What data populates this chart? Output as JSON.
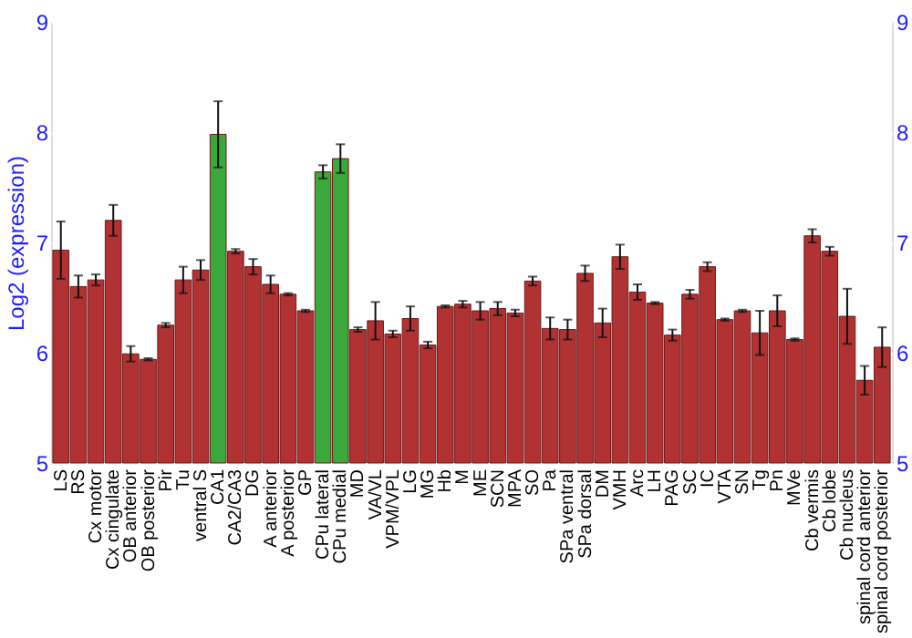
{
  "chart_data": {
    "type": "bar",
    "ylabel": "Log2 (expression)",
    "categories": [
      "LS",
      "RS",
      "Cx motor",
      "Cx cingulate",
      "OB anterior",
      "OB posterior",
      "Pir",
      "Tu",
      "ventral S",
      "CA1",
      "CA2/CA3",
      "DG",
      "A anterior",
      "A posterior",
      "GP",
      "CPu lateral",
      "CPu medial",
      "MD",
      "VA/VL",
      "VPM/VPL",
      "LG",
      "MG",
      "Hb",
      "M",
      "ME",
      "SCN",
      "MPA",
      "SO",
      "Pa",
      "SPa ventral",
      "SPa dorsal",
      "DM",
      "VMH",
      "Arc",
      "LH",
      "PAG",
      "SC",
      "IC",
      "VTA",
      "SN",
      "Tg",
      "Pn",
      "MVe",
      "Cb vermis",
      "Cb lobe",
      "Cb nucleus",
      "spinal cord anterior",
      "spinal cord posterior"
    ],
    "values": [
      6.93,
      6.6,
      6.66,
      7.2,
      5.99,
      5.94,
      6.25,
      6.66,
      6.75,
      7.98,
      6.92,
      6.78,
      6.62,
      6.53,
      6.38,
      7.64,
      7.76,
      6.21,
      6.29,
      6.17,
      6.31,
      6.07,
      6.42,
      6.44,
      6.38,
      6.4,
      6.36,
      6.65,
      6.22,
      6.21,
      6.72,
      6.27,
      6.87,
      6.55,
      6.45,
      6.16,
      6.53,
      6.78,
      6.3,
      6.38,
      6.18,
      6.38,
      6.12,
      7.06,
      6.92,
      6.33,
      5.75,
      6.05
    ],
    "errors": [
      0.26,
      0.1,
      0.05,
      0.14,
      0.07,
      0.01,
      0.02,
      0.12,
      0.09,
      0.3,
      0.02,
      0.07,
      0.08,
      0.01,
      0.01,
      0.06,
      0.13,
      0.02,
      0.17,
      0.03,
      0.11,
      0.03,
      0.01,
      0.03,
      0.08,
      0.06,
      0.03,
      0.04,
      0.1,
      0.09,
      0.07,
      0.13,
      0.11,
      0.07,
      0.01,
      0.05,
      0.04,
      0.04,
      0.01,
      0.01,
      0.2,
      0.14,
      0.01,
      0.06,
      0.04,
      0.25,
      0.13,
      0.18
    ],
    "colors": [
      "#b03232",
      "#b03232",
      "#b03232",
      "#b03232",
      "#b03232",
      "#b03232",
      "#b03232",
      "#b03232",
      "#b03232",
      "#3aa83a",
      "#b03232",
      "#b03232",
      "#b03232",
      "#b03232",
      "#b03232",
      "#3aa83a",
      "#3aa83a",
      "#b03232",
      "#b03232",
      "#b03232",
      "#b03232",
      "#b03232",
      "#b03232",
      "#b03232",
      "#b03232",
      "#b03232",
      "#b03232",
      "#b03232",
      "#b03232",
      "#b03232",
      "#b03232",
      "#b03232",
      "#b03232",
      "#b03232",
      "#b03232",
      "#b03232",
      "#b03232",
      "#b03232",
      "#b03232",
      "#b03232",
      "#b03232",
      "#b03232",
      "#b03232",
      "#b03232",
      "#b03232",
      "#b03232",
      "#b03232",
      "#b03232"
    ],
    "ylim": [
      5,
      9
    ],
    "yticks": [
      5,
      6,
      7,
      8,
      9
    ],
    "y2lim": [
      5,
      9
    ],
    "y2ticks": [
      5,
      6,
      7,
      8,
      9
    ],
    "grid": "y"
  }
}
